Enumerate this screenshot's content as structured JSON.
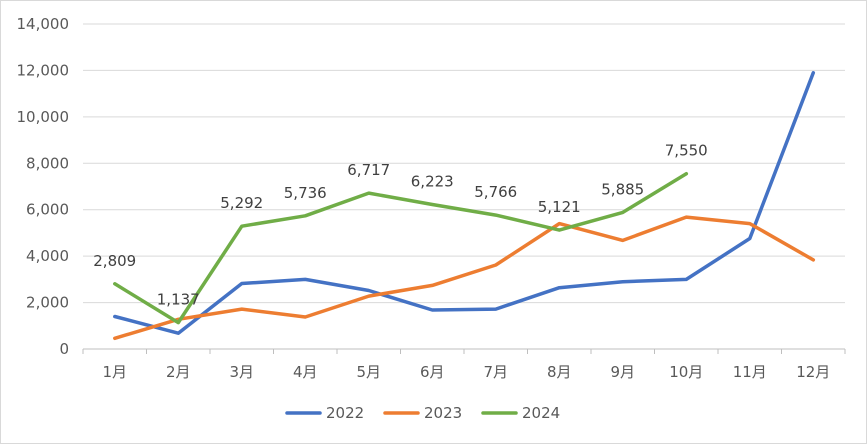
{
  "chart_data": {
    "type": "line",
    "title": "",
    "xlabel": "",
    "ylabel": "",
    "categories": [
      "1月",
      "2月",
      "3月",
      "4月",
      "5月",
      "6月",
      "7月",
      "8月",
      "9月",
      "10月",
      "11月",
      "12月"
    ],
    "ylim": [
      0,
      14000
    ],
    "yticks": [
      0,
      2000,
      4000,
      6000,
      8000,
      10000,
      12000,
      14000
    ],
    "ytick_labels": [
      "0",
      "2,000",
      "4,000",
      "6,000",
      "8,000",
      "10,000",
      "12,000",
      "14,000"
    ],
    "grid": true,
    "legend_position": "bottom",
    "series": [
      {
        "name": "2022",
        "color": "#4472C4",
        "values": [
          1400,
          680,
          2820,
          3000,
          2520,
          1680,
          1720,
          2640,
          2900,
          3000,
          4760,
          11900
        ],
        "labels": null
      },
      {
        "name": "2023",
        "color": "#ED7D31",
        "values": [
          460,
          1280,
          1720,
          1380,
          2280,
          2740,
          3620,
          5400,
          4680,
          5680,
          5400,
          3840
        ],
        "labels": null
      },
      {
        "name": "2024",
        "color": "#70AD47",
        "values": [
          2809,
          1137,
          5292,
          5736,
          6717,
          6223,
          5766,
          5121,
          5885,
          7550,
          null,
          null
        ],
        "labels": [
          "2,809",
          "1,137",
          "5,292",
          "5,736",
          "6,717",
          "6,223",
          "5,766",
          "5,121",
          "5,885",
          "7,550",
          null,
          null
        ]
      }
    ]
  }
}
